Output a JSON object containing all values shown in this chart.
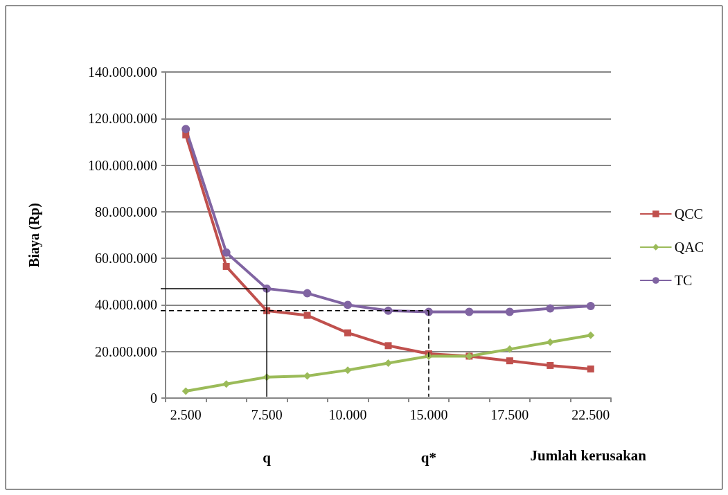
{
  "chart_data": {
    "type": "line",
    "xlabel": "Jumlah kerusakan",
    "ylabel": "Biaya (Rp)",
    "categories": [
      "2.500",
      null,
      "7.500",
      null,
      "10.000",
      null,
      "15.000",
      null,
      "17.500",
      null,
      "22.500"
    ],
    "series": [
      {
        "name": "QCC",
        "color": "#c0504d",
        "marker": "square",
        "values": [
          113000000,
          56500000,
          37500000,
          35500000,
          28000000,
          22500000,
          19000000,
          18000000,
          16000000,
          14000000,
          12500000
        ]
      },
      {
        "name": "QAC",
        "color": "#9bbb59",
        "marker": "diamond",
        "values": [
          3000000,
          6000000,
          9000000,
          9500000,
          12000000,
          15000000,
          18000000,
          18000000,
          21000000,
          24000000,
          27000000
        ]
      },
      {
        "name": "TC",
        "color": "#8064a2",
        "marker": "circle",
        "values": [
          115500000,
          62500000,
          47000000,
          45000000,
          40000000,
          37500000,
          37000000,
          37000000,
          37000000,
          38500000,
          39500000
        ]
      }
    ],
    "ylim": [
      0,
      140000000
    ],
    "yticks": [
      0,
      {
        "value": 20000000,
        "label": "20.000.000"
      },
      {
        "value": 40000000,
        "label": "40.000.000"
      },
      {
        "value": 60000000,
        "label": "60.000.000"
      },
      {
        "value": 80000000,
        "label": "80.000.000"
      },
      {
        "value": 100000000,
        "label": "100.000.000"
      },
      {
        "value": 120000000,
        "label": "120.000.000"
      },
      {
        "value": 140000000,
        "label": "140.000.000"
      }
    ],
    "grid": "y",
    "legend": "right",
    "line_style": "solid",
    "ref_lines": [
      {
        "axis": "y",
        "value": 47000000,
        "color": "#000000",
        "line_style": "solid"
      },
      {
        "axis": "x",
        "value": "7.500",
        "color": "#000000",
        "line_style": "solid"
      },
      {
        "axis": "y",
        "value": 37500000,
        "color": "#000000",
        "line_style": "dashed"
      },
      {
        "axis": "x",
        "value": "15.000",
        "color": "#000000",
        "line_style": "dashed"
      }
    ],
    "annotations": [
      "q",
      "q*"
    ]
  }
}
